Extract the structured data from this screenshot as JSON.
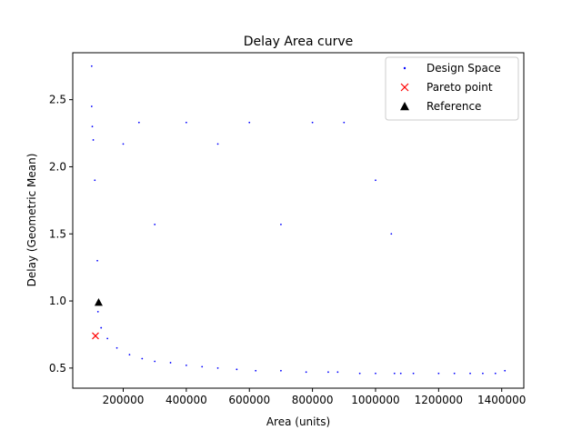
{
  "chart_data": {
    "type": "scatter",
    "title": "Delay Area curve",
    "xlabel": "Area (units)",
    "ylabel": "Delay (Geometric Mean)",
    "xlim": [
      40000,
      1470000
    ],
    "ylim": [
      0.35,
      2.85
    ],
    "xticks": [
      200000,
      400000,
      600000,
      800000,
      1000000,
      1200000,
      1400000
    ],
    "xtick_labels": [
      "200000",
      "400000",
      "600000",
      "800000",
      "1000000",
      "1200000",
      "1400000"
    ],
    "yticks": [
      0.5,
      1.0,
      1.5,
      2.0,
      2.5
    ],
    "ytick_labels": [
      "0.5",
      "1.0",
      "1.5",
      "2.0",
      "2.5"
    ],
    "grid": false,
    "legend_position": "top-right",
    "series": [
      {
        "name": "Design Space",
        "marker": "dot",
        "color": "#0000ff",
        "x": [
          100000,
          100000,
          102000,
          105000,
          110000,
          118000,
          120000,
          130000,
          150000,
          180000,
          220000,
          260000,
          300000,
          350000,
          400000,
          450000,
          500000,
          560000,
          620000,
          700000,
          780000,
          850000,
          880000,
          950000,
          1000000,
          1060000,
          1080000,
          1120000,
          1200000,
          1250000,
          1300000,
          1340000,
          1380000,
          1410000,
          250000,
          400000,
          600000,
          800000,
          1000000,
          200000,
          500000,
          900000,
          1050000,
          300000,
          700000
        ],
        "y": [
          2.75,
          2.45,
          2.3,
          2.2,
          1.9,
          1.3,
          0.92,
          0.8,
          0.72,
          0.65,
          0.6,
          0.57,
          0.55,
          0.54,
          0.52,
          0.51,
          0.5,
          0.49,
          0.48,
          0.48,
          0.47,
          0.47,
          0.47,
          0.46,
          0.46,
          0.46,
          0.46,
          0.46,
          0.46,
          0.46,
          0.46,
          0.46,
          0.46,
          0.48,
          2.33,
          2.33,
          2.33,
          2.33,
          1.9,
          2.17,
          2.17,
          2.33,
          1.5,
          1.57,
          1.57
        ]
      },
      {
        "name": "Pareto point",
        "marker": "x",
        "color": "#ff0000",
        "x": [
          112000
        ],
        "y": [
          0.74
        ]
      },
      {
        "name": "Reference",
        "marker": "triangle",
        "color": "#000000",
        "x": [
          122000
        ],
        "y": [
          0.99
        ]
      }
    ]
  }
}
